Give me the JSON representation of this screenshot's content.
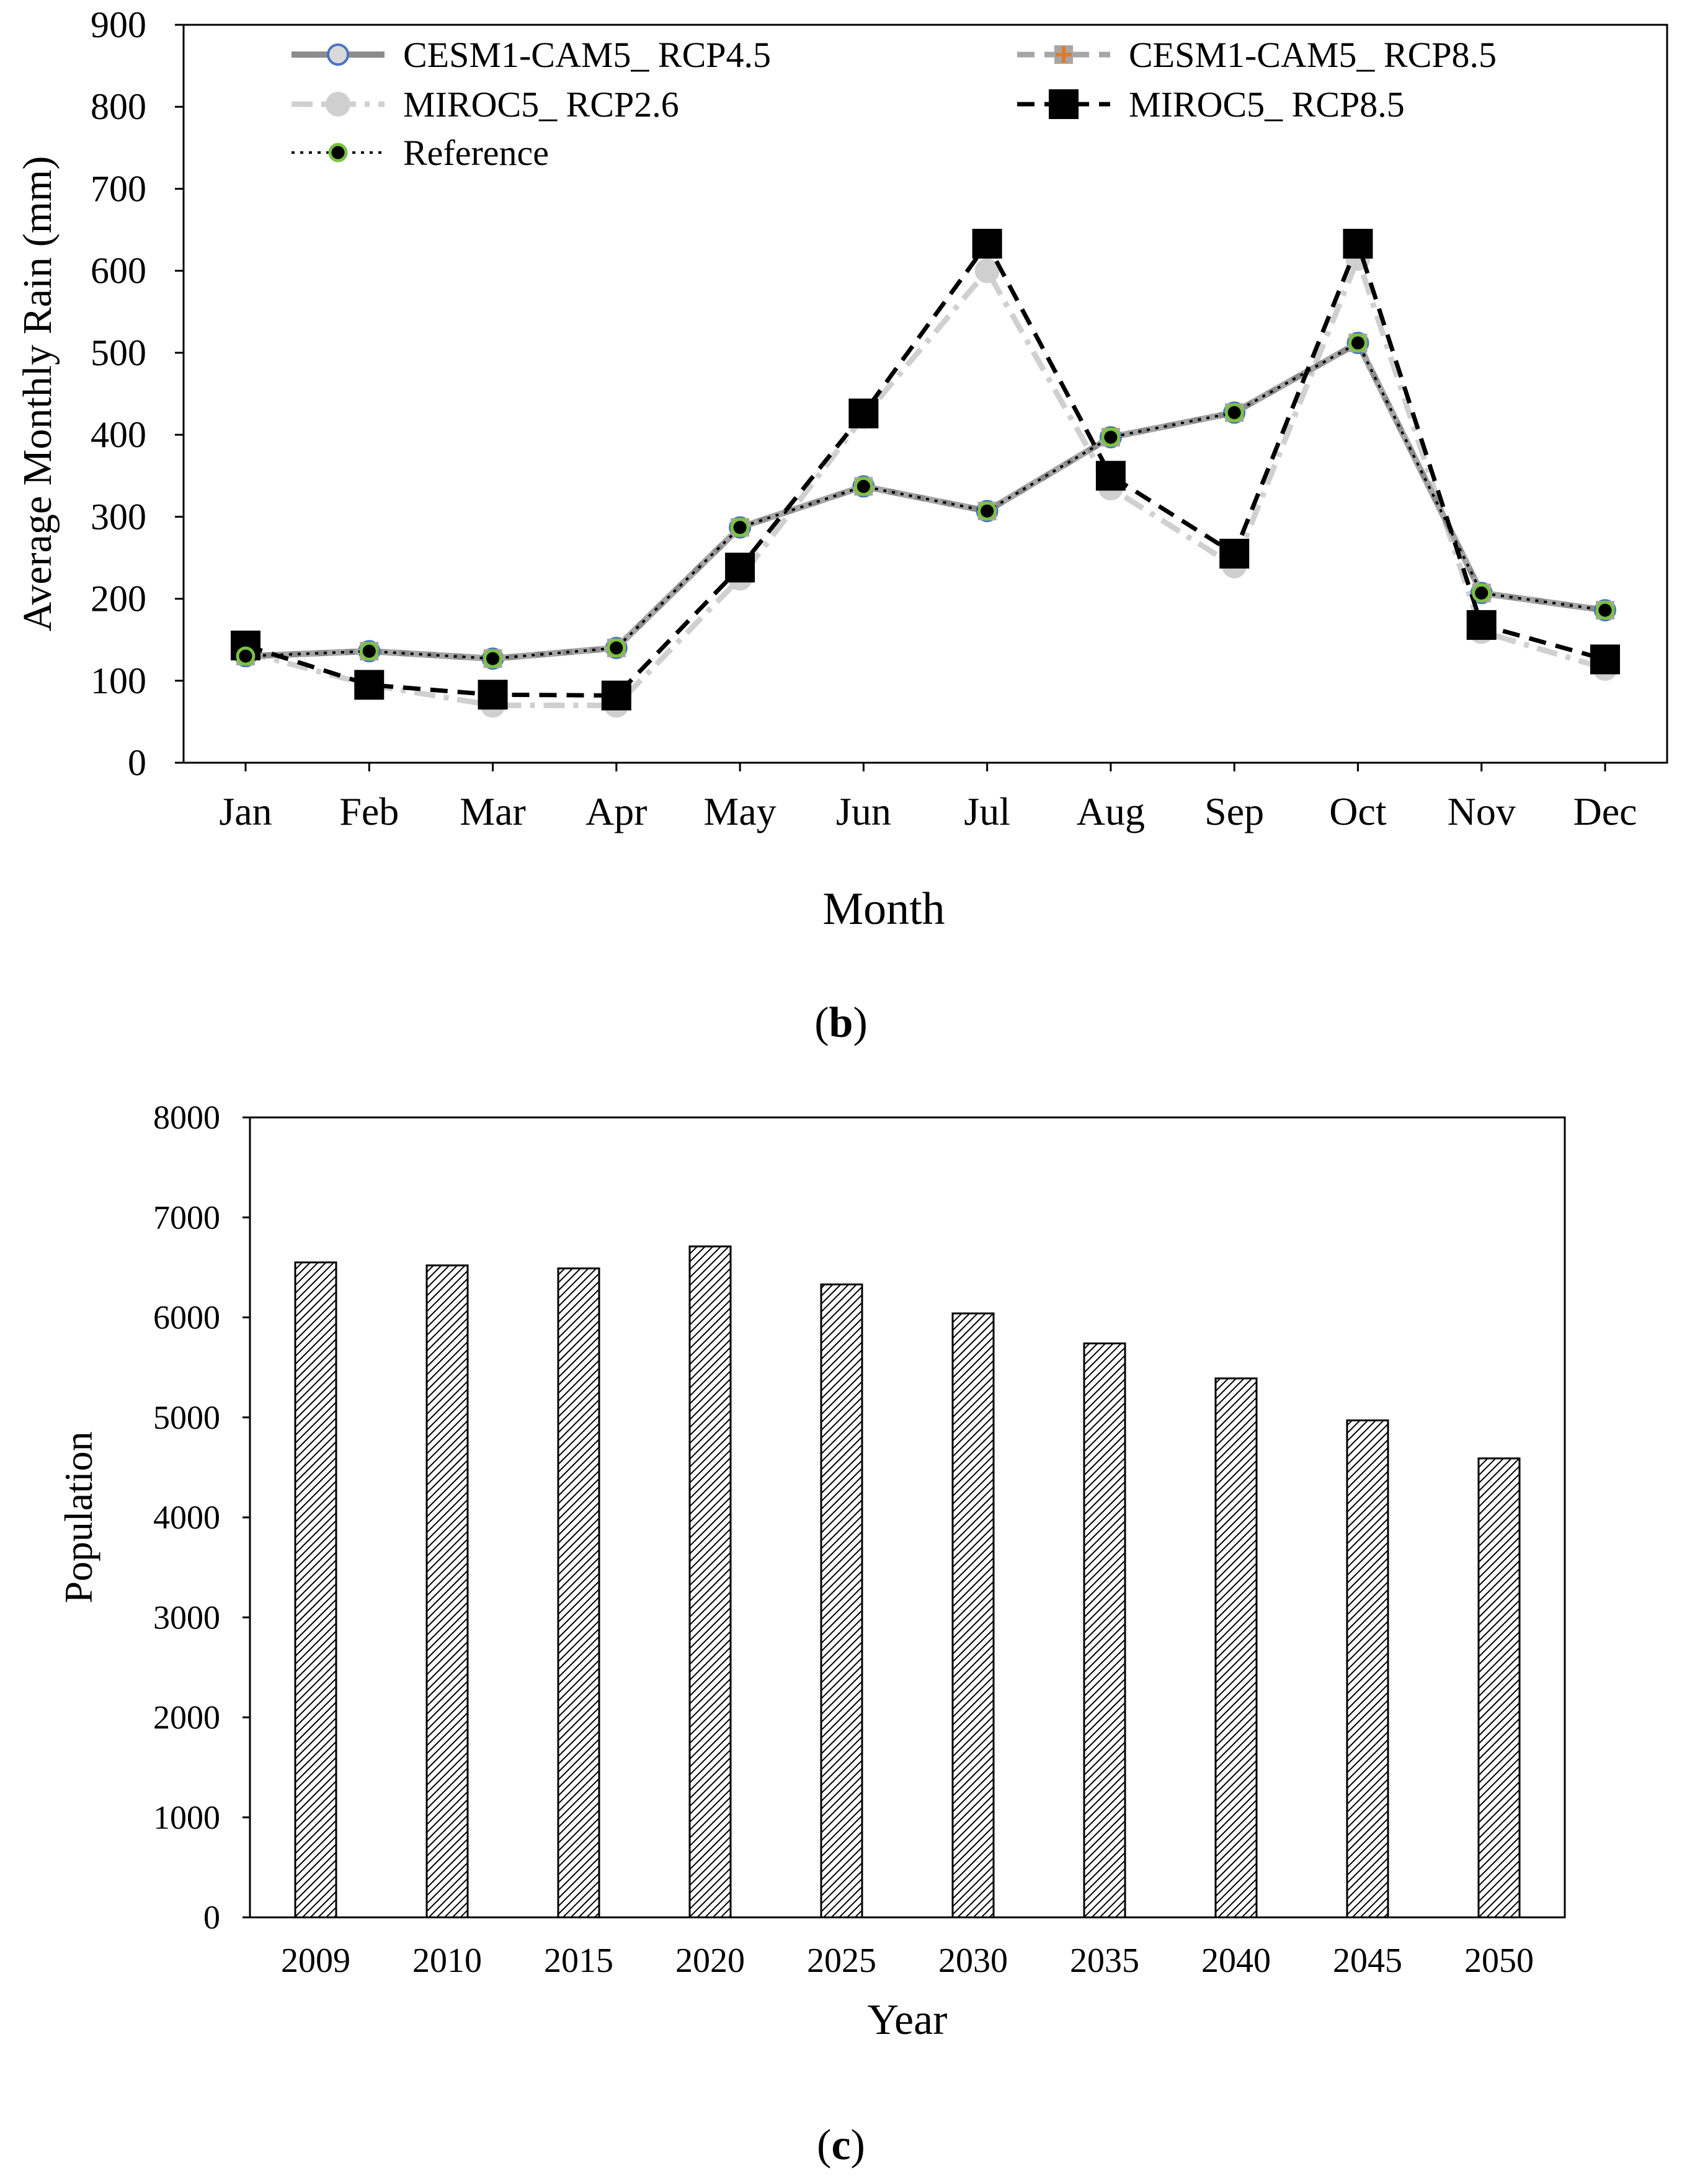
{
  "chart_data": [
    {
      "type": "line",
      "panel": "b",
      "xlabel": "Month",
      "ylabel": "Average Monthly  Rain (mm)",
      "ylim": [
        0,
        900
      ],
      "yticks": [
        0,
        100,
        200,
        300,
        400,
        500,
        600,
        700,
        800,
        900
      ],
      "categories": [
        "Jan",
        "Feb",
        "Mar",
        "Apr",
        "May",
        "Jun",
        "Jul",
        "Aug",
        "Sep",
        "Oct",
        "Nov",
        "Dec"
      ],
      "grid": false,
      "legend": "top, inside plot",
      "series": [
        {
          "name": "CESM1-CAM5_ RCP4.5",
          "style": "solid",
          "color": "#8c8c8c",
          "marker": "circle-blue-edge",
          "values": [
            130,
            136,
            127,
            140,
            287,
            337,
            307,
            397,
            427,
            512,
            207,
            186
          ]
        },
        {
          "name": "CESM1-CAM5_ RCP8.5",
          "style": "dash",
          "color": "#a6a6a6",
          "marker": "plus-orange",
          "values": [
            130,
            136,
            127,
            140,
            287,
            337,
            307,
            397,
            427,
            512,
            207,
            186
          ]
        },
        {
          "name": "MIROC5_ RCP2.6",
          "style": "dashdot",
          "color": "#d0d0d0",
          "marker": "circle-grey",
          "values": [
            135,
            95,
            70,
            70,
            225,
            422,
            600,
            335,
            240,
            615,
            160,
            115
          ]
        },
        {
          "name": "MIROC5_ RCP8.5",
          "style": "dash",
          "color": "#000000",
          "marker": "square-black",
          "values": [
            143,
            95,
            83,
            82,
            238,
            426,
            633,
            350,
            255,
            633,
            168,
            126
          ]
        },
        {
          "name": "Reference",
          "style": "dot",
          "color": "#000000",
          "marker": "dot-green",
          "values": [
            130,
            136,
            127,
            140,
            287,
            337,
            307,
            397,
            427,
            512,
            207,
            186
          ]
        }
      ]
    },
    {
      "type": "bar",
      "panel": "c",
      "xlabel": "Year",
      "ylabel": "Population",
      "ylim": [
        0,
        8000
      ],
      "yticks": [
        0,
        1000,
        2000,
        3000,
        4000,
        5000,
        6000,
        7000,
        8000
      ],
      "categories": [
        "2009",
        "2010",
        "2015",
        "2020",
        "2025",
        "2030",
        "2035",
        "2040",
        "2045",
        "2050"
      ],
      "values": [
        6550,
        6520,
        6490,
        6710,
        6330,
        6040,
        5740,
        5390,
        4970,
        4590
      ],
      "grid": false
    }
  ],
  "panel_labels": {
    "b": "b",
    "c": "c"
  }
}
